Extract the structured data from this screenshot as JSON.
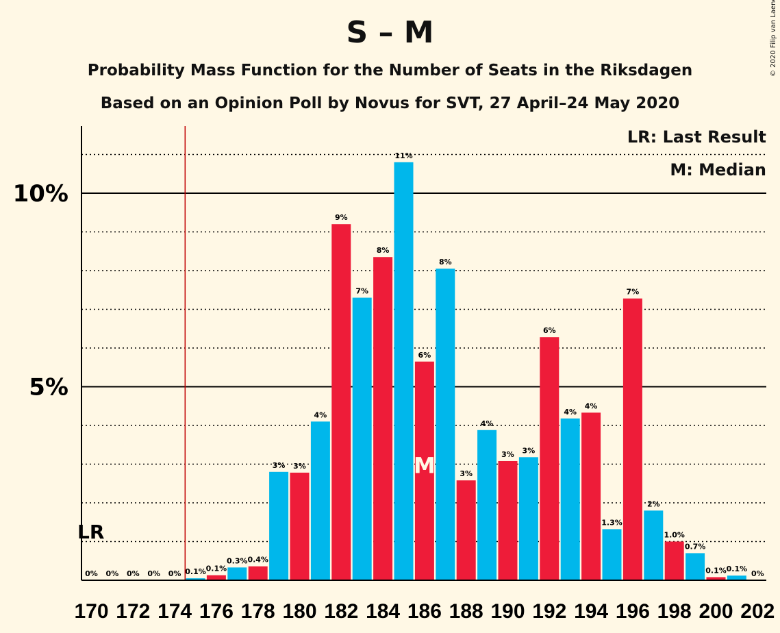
{
  "chart_data": {
    "type": "bar",
    "title": "S – M",
    "subtitle_lines": [
      "Probability Mass Function for the Number of Seats in the Riksdagen",
      "Based on an Opinion Poll by Novus for SVT, 27 April–24 May 2020"
    ],
    "legend": {
      "placement": "top-right",
      "entries": [
        "LR: Last Result",
        "M: Median"
      ]
    },
    "copyright": "© 2020 Filip van Laenen",
    "x": [
      170,
      171,
      172,
      173,
      174,
      175,
      176,
      177,
      178,
      179,
      180,
      181,
      182,
      183,
      184,
      185,
      186,
      187,
      188,
      189,
      190,
      191,
      192,
      193,
      194,
      195,
      196,
      197,
      198,
      199,
      200,
      201,
      202
    ],
    "x_tick_labels": [
      "170",
      "172",
      "174",
      "176",
      "178",
      "180",
      "182",
      "184",
      "186",
      "188",
      "190",
      "192",
      "194",
      "196",
      "198",
      "200",
      "202"
    ],
    "values": [
      0,
      0,
      0,
      0,
      0,
      0.05,
      0.13,
      0.33,
      0.36,
      2.8,
      2.78,
      4.1,
      9.2,
      7.3,
      8.35,
      10.8,
      5.65,
      8.05,
      2.58,
      3.88,
      3.08,
      3.18,
      6.28,
      4.18,
      4.33,
      1.32,
      7.28,
      1.8,
      1.0,
      0.7,
      0.08,
      0.12,
      0
    ],
    "data_labels": [
      "0%",
      "0%",
      "0%",
      "0%",
      "0%",
      "0.1%",
      "0.1%",
      "0.3%",
      "0.4%",
      "3%",
      "3%",
      "4%",
      "9%",
      "7%",
      "8%",
      "11%",
      "6%",
      "8%",
      "3%",
      "4%",
      "3%",
      "3%",
      "6%",
      "4%",
      "4%",
      "1.3%",
      "7%",
      "2%",
      "1.0%",
      "0.7%",
      "0.1%",
      "0.1%",
      "0%"
    ],
    "y_tick_labels": [
      {
        "value": 5,
        "label": "5%"
      },
      {
        "value": 10,
        "label": "10%"
      }
    ],
    "ylim": [
      0,
      11.8
    ],
    "y_minor_step": 1,
    "last_result_x": 174.5,
    "last_result_label": "LR",
    "median_x": 186,
    "median_label": "M",
    "colors": {
      "blue": "#00B7EB",
      "red": "#EE1C39",
      "lr_line": "#C00000",
      "background": "#FFF8E5"
    },
    "grid": true
  }
}
